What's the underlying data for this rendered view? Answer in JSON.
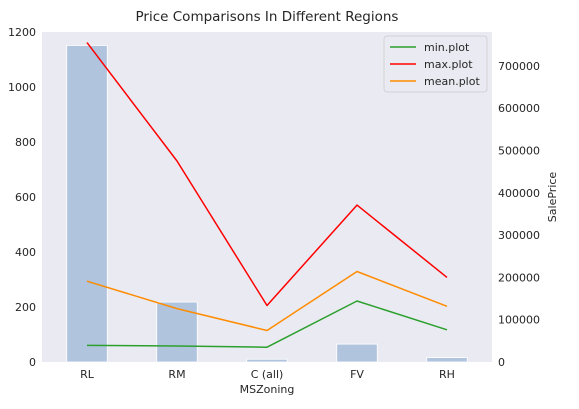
{
  "chart_data": {
    "type": "bar+line",
    "title": "Price Comparisons In Different Regions",
    "xlabel": "MSZoning",
    "ylabel_left": "",
    "ylabel_right": "SalePrice",
    "categories": [
      "RL",
      "RM",
      "C (all)",
      "FV",
      "RH"
    ],
    "bars": {
      "values": [
        1151,
        218,
        10,
        65,
        16
      ],
      "color": "#b0c4de",
      "ylim": [
        0,
        1200
      ],
      "yticks": [
        0,
        200,
        400,
        600,
        800,
        1000,
        1200
      ]
    },
    "series": [
      {
        "name": "min.plot",
        "color": "#2ca02c",
        "values": [
          39300,
          37900,
          34900,
          144152,
          76000
        ]
      },
      {
        "name": "max.plot",
        "color": "#ff0000",
        "values": [
          755000,
          475000,
          133500,
          370878,
          200000
        ]
      },
      {
        "name": "mean.plot",
        "color": "#ff8c00",
        "values": [
          191005,
          126317,
          74528,
          214014,
          131558
        ]
      }
    ],
    "y2lim": [
      0,
      780000
    ],
    "y2ticks": [
      0,
      100000,
      200000,
      300000,
      400000,
      500000,
      600000,
      700000
    ],
    "grid": false,
    "legend_position": "top-right",
    "background": "#eaeaf2"
  }
}
